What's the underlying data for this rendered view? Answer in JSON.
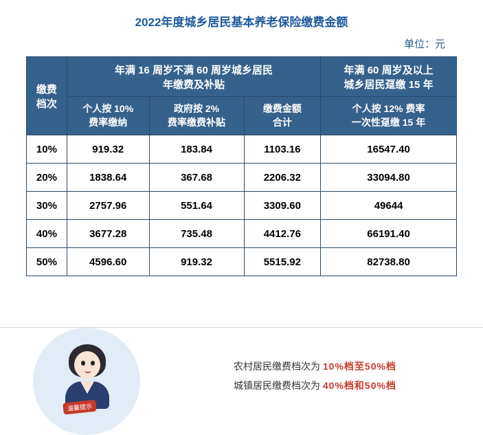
{
  "title": "2022年度城乡居民基本养老保险缴费金额",
  "unit": "单位：元",
  "table": {
    "group_headers": [
      "年满 16 周岁不满 60 周岁城乡居民\n年缴费及补贴",
      "年满 60 周岁及以上\n城乡居民趸缴 15 年"
    ],
    "sub_headers": [
      "缴费\n档次",
      "个人按 10%\n费率缴纳",
      "政府按 2%\n费率缴费补贴",
      "缴费金额\n合计",
      "个人按 12% 费率\n一次性趸缴 15 年"
    ],
    "rows": [
      [
        "10%",
        "919.32",
        "183.84",
        "1103.16",
        "16547.40"
      ],
      [
        "20%",
        "1838.64",
        "367.68",
        "2206.32",
        "33094.80"
      ],
      [
        "30%",
        "2757.96",
        "551.64",
        "3309.60",
        "49644"
      ],
      [
        "40%",
        "3677.28",
        "735.48",
        "4412.76",
        "66191.40"
      ],
      [
        "50%",
        "4596.60",
        "919.32",
        "5515.92",
        "82738.80"
      ]
    ],
    "colors": {
      "header_bg": "#35628d",
      "header_text": "#ffffff",
      "border": "#2a4a6a",
      "cell_text": "#000000",
      "title_color": "#1e5a9e"
    }
  },
  "note": {
    "line1_pre": "农村居民缴费档次为",
    "line1_hl": "10%档至50%档",
    "line2_pre": "城镇居民缴费档次为",
    "line2_hl": "40%档和50%档"
  },
  "tip_tag": "温馨提示"
}
